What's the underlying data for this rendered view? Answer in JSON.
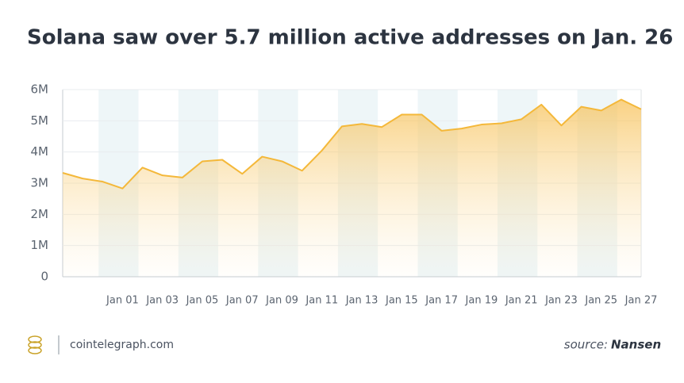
{
  "chart_data": {
    "type": "area",
    "title": "Solana saw over 5.7 million active addresses on Jan. 26",
    "categories": [
      null,
      null,
      null,
      "Jan 01",
      null,
      "Jan 03",
      null,
      "Jan 05",
      null,
      "Jan 07",
      null,
      "Jan 09",
      null,
      "Jan 11",
      null,
      "Jan 13",
      null,
      "Jan 15",
      null,
      "Jan 17",
      null,
      "Jan 19",
      null,
      "Jan 21",
      null,
      "Jan 23",
      null,
      "Jan 25",
      null,
      "Jan 27"
    ],
    "series": [
      {
        "name": "Active addresses",
        "color": "#f4b83a",
        "values": [
          3330000,
          3150000,
          3050000,
          2830000,
          3500000,
          3250000,
          3180000,
          3700000,
          3750000,
          3300000,
          3850000,
          3700000,
          3400000,
          4050000,
          4820000,
          4900000,
          4800000,
          5200000,
          5200000,
          4680000,
          4750000,
          4880000,
          4920000,
          5050000,
          5520000,
          4850000,
          5450000,
          5330000,
          5680000,
          5370000
        ]
      }
    ],
    "ylim": [
      0,
      6000000
    ],
    "yticks": [
      0,
      {
        "value": 1000000,
        "label": "1M"
      },
      {
        "value": 2000000,
        "label": "2M"
      },
      {
        "value": 3000000,
        "label": "3M"
      },
      {
        "value": 4000000,
        "label": "4M"
      },
      {
        "value": 5000000,
        "label": "5M"
      },
      {
        "value": 6000000,
        "label": "6M"
      }
    ],
    "grid": true
  },
  "footer": {
    "site": "cointelegraph.com",
    "source_label": "source:",
    "source_name": "Nansen"
  }
}
